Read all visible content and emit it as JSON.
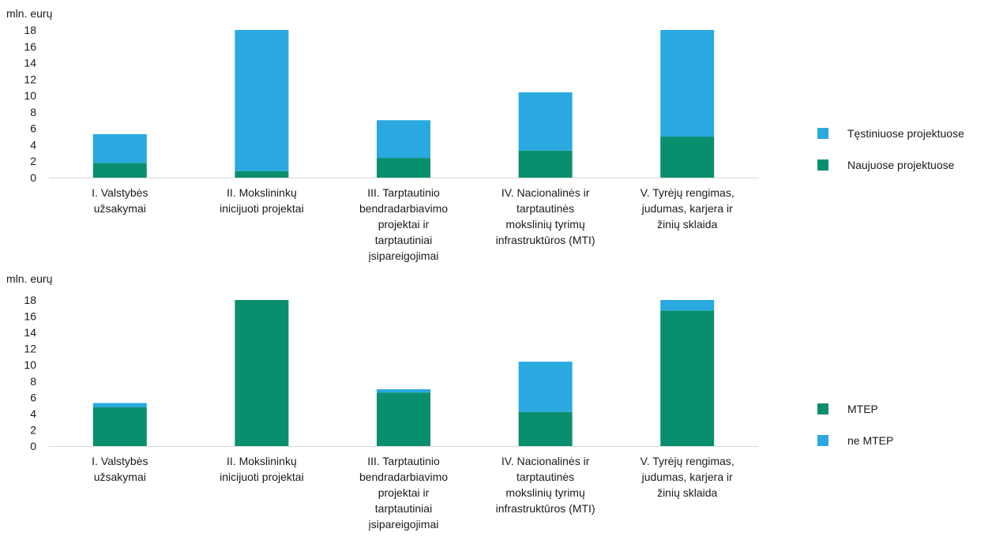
{
  "colors": {
    "blue": "#29a9e0",
    "green": "#0a8f6e"
  },
  "chart_data": [
    {
      "type": "bar",
      "stacked": true,
      "unit_label": "mln. eurų",
      "ylim": [
        0,
        18
      ],
      "yticks": [
        0,
        2,
        4,
        6,
        8,
        10,
        12,
        14,
        16,
        18
      ],
      "grid": false,
      "legend_position": "right",
      "categories": [
        [
          "I. Valstybės",
          "užsakymai"
        ],
        [
          "II. Mokslininkų",
          "inicijuoti projektai"
        ],
        [
          "III. Tarptautinio",
          "bendradarbiavimo",
          "projektai ir",
          "tarptautiniai",
          "įsipareigojimai"
        ],
        [
          "IV. Nacionalinės ir",
          "tarptautinės",
          "mokslinių tyrimų",
          "infrastruktūros (MTI)"
        ],
        [
          "V. Tyrėjų rengimas,",
          "judumas, karjera ir",
          "žinių sklaida"
        ]
      ],
      "series": [
        {
          "name": "Naujuose projektuose",
          "color": "#0a8f6e",
          "values": [
            1.8,
            0.8,
            2.4,
            3.3,
            5.0
          ]
        },
        {
          "name": "Tęstiniuose projektuose",
          "color": "#29a9e0",
          "values": [
            3.5,
            17.2,
            4.6,
            7.1,
            13.0
          ]
        }
      ],
      "legend_order": [
        "Tęstiniuose projektuose",
        "Naujuose projektuose"
      ]
    },
    {
      "type": "bar",
      "stacked": true,
      "unit_label": "mln. eurų",
      "ylim": [
        0,
        18
      ],
      "yticks": [
        0,
        2,
        4,
        6,
        8,
        10,
        12,
        14,
        16,
        18
      ],
      "grid": false,
      "legend_position": "right",
      "categories": [
        [
          "I. Valstybės",
          "užsakymai"
        ],
        [
          "II. Mokslininkų",
          "inicijuoti projektai"
        ],
        [
          "III. Tarptautinio",
          "bendradarbiavimo",
          "projektai ir",
          "tarptautiniai",
          "įsipareigojimai"
        ],
        [
          "IV. Nacionalinės ir",
          "tarptautinės",
          "mokslinių tyrimų",
          "infrastruktūros (MTI)"
        ],
        [
          "V. Tyrėjų rengimas,",
          "judumas, karjera ir",
          "žinių sklaida"
        ]
      ],
      "series": [
        {
          "name": "MTEP",
          "color": "#0a8f6e",
          "values": [
            4.8,
            18.0,
            6.6,
            4.2,
            16.7
          ]
        },
        {
          "name": "ne MTEP",
          "color": "#29a9e0",
          "values": [
            0.5,
            0.0,
            0.4,
            6.2,
            1.3
          ]
        }
      ],
      "legend_order": [
        "MTEP",
        "ne MTEP"
      ]
    }
  ]
}
